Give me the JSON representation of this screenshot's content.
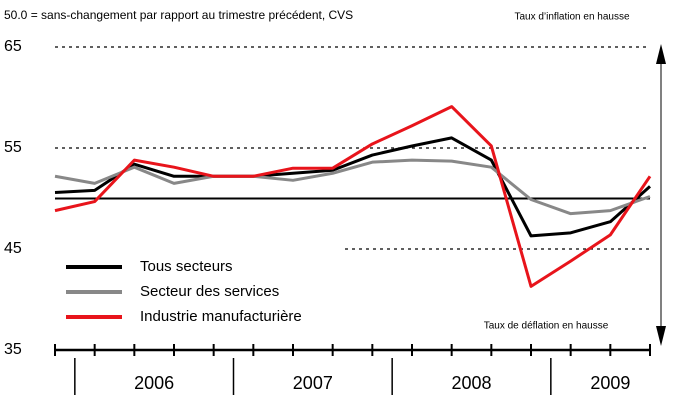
{
  "chart_data": {
    "type": "line",
    "subtitle": "50.0 = sans-changement par rapport au trimestre précédent, CVS",
    "annotations": [
      "Taux d’inflation en hausse",
      "Taux de déflation en hausse"
    ],
    "categories": [
      null,
      null,
      null,
      null,
      null,
      null,
      null,
      null,
      null,
      null,
      null,
      null,
      null,
      null,
      null,
      null
    ],
    "groups": [
      {
        "label": null,
        "count": 1
      },
      {
        "label": "2006",
        "count": 4
      },
      {
        "label": "2007",
        "count": 4
      },
      {
        "label": "2008",
        "count": 4
      },
      {
        "label": "2009",
        "count": 3
      }
    ],
    "series": [
      {
        "name": "Tous secteurs",
        "color": "#000000",
        "values": [
          50.6,
          50.8,
          53.4,
          52.2,
          52.2,
          52.2,
          52.5,
          52.8,
          54.3,
          55.2,
          56.0,
          53.8,
          46.3,
          46.6,
          47.7,
          51.2
        ]
      },
      {
        "name": "Secteur des services",
        "color": "#888888",
        "values": [
          52.2,
          51.5,
          53.1,
          51.5,
          52.2,
          52.2,
          51.8,
          52.5,
          53.6,
          53.8,
          53.7,
          53.1,
          49.9,
          48.5,
          48.8,
          50.2
        ]
      },
      {
        "name": "Industrie manufacturière",
        "color": "#e8141b",
        "values": [
          48.8,
          49.7,
          53.8,
          53.1,
          52.2,
          52.2,
          53.0,
          53.0,
          55.4,
          57.2,
          59.1,
          55.2,
          41.3,
          43.8,
          46.4,
          52.2
        ]
      }
    ],
    "ylim": [
      35,
      65
    ],
    "yticks": [
      35,
      45,
      55,
      65
    ],
    "grid": true,
    "reference_line": 50,
    "legend": "lower left"
  }
}
